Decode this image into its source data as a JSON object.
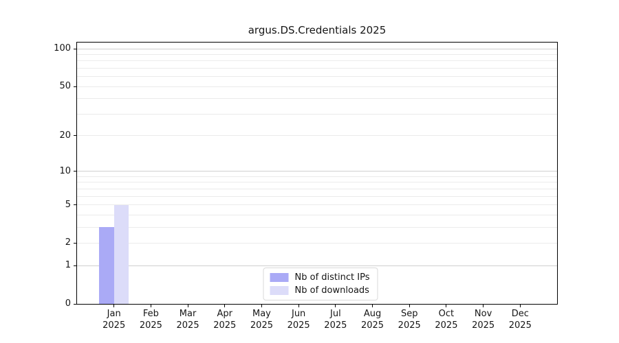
{
  "chart_data": {
    "type": "bar",
    "title": "argus.DS.Credentials 2025",
    "year_label": "2025",
    "categories": [
      "Jan",
      "Feb",
      "Mar",
      "Apr",
      "May",
      "Jun",
      "Jul",
      "Aug",
      "Sep",
      "Oct",
      "Nov",
      "Dec"
    ],
    "series": [
      {
        "name": "Nb of distinct IPs",
        "color": "#aaaaf6",
        "values": [
          3,
          0,
          0,
          0,
          0,
          0,
          0,
          0,
          0,
          0,
          0,
          0
        ]
      },
      {
        "name": "Nb of downloads",
        "color": "#dcdcf9",
        "values": [
          5,
          0,
          0,
          0,
          0,
          0,
          0,
          0,
          0,
          0,
          0,
          0
        ]
      }
    ],
    "xlabel": "",
    "ylabel": "",
    "yscale": "log1p",
    "ylim": [
      0,
      112
    ],
    "yticks": [
      0,
      1,
      2,
      5,
      10,
      20,
      50,
      100
    ],
    "major_gridlines": [
      1,
      10,
      100
    ],
    "minor_gridlines": [
      2,
      3,
      4,
      5,
      6,
      7,
      8,
      9,
      20,
      30,
      40,
      50,
      60,
      70,
      80,
      90
    ],
    "grid": "horizontal",
    "legend_position": "lower center",
    "colors": {
      "major_grid": "#cfcfcf",
      "minor_grid": "#ebebeb",
      "spine": "#000000",
      "text": "#151515",
      "background": "#ffffff"
    }
  }
}
